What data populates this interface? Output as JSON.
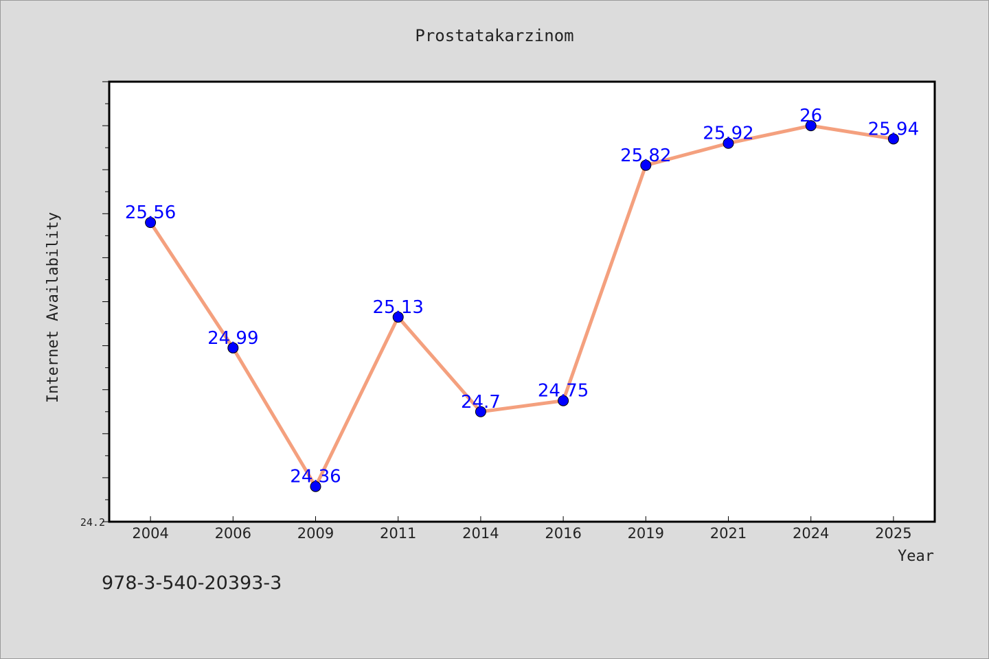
{
  "chart_data": {
    "type": "line",
    "title": "Prostatakarzinom",
    "xlabel": "Year",
    "ylabel": "Internet Availability",
    "categories": [
      "2004",
      "2006",
      "2009",
      "2011",
      "2014",
      "2016",
      "2019",
      "2021",
      "2024",
      "2025"
    ],
    "series": [
      {
        "values": [
          25.56,
          24.99,
          24.36,
          25.13,
          24.7,
          24.75,
          25.82,
          25.92,
          26,
          25.94
        ]
      }
    ],
    "data_labels": [
      "25.56",
      "24.99",
      "24.36",
      "25.13",
      "24.7",
      "24.75",
      "25.82",
      "25.92",
      "26",
      "25.94"
    ],
    "ylim": [
      24.2,
      26.2
    ],
    "yticks_labeled": [
      "24.2"
    ],
    "grid": false,
    "colors": {
      "line": "#f4a07e",
      "marker": "#0000ff",
      "label": "#0000ff",
      "background": "#dcdcdc",
      "plot_bg": "#ffffff"
    }
  },
  "footer": {
    "note": "978-3-540-20393-3"
  }
}
